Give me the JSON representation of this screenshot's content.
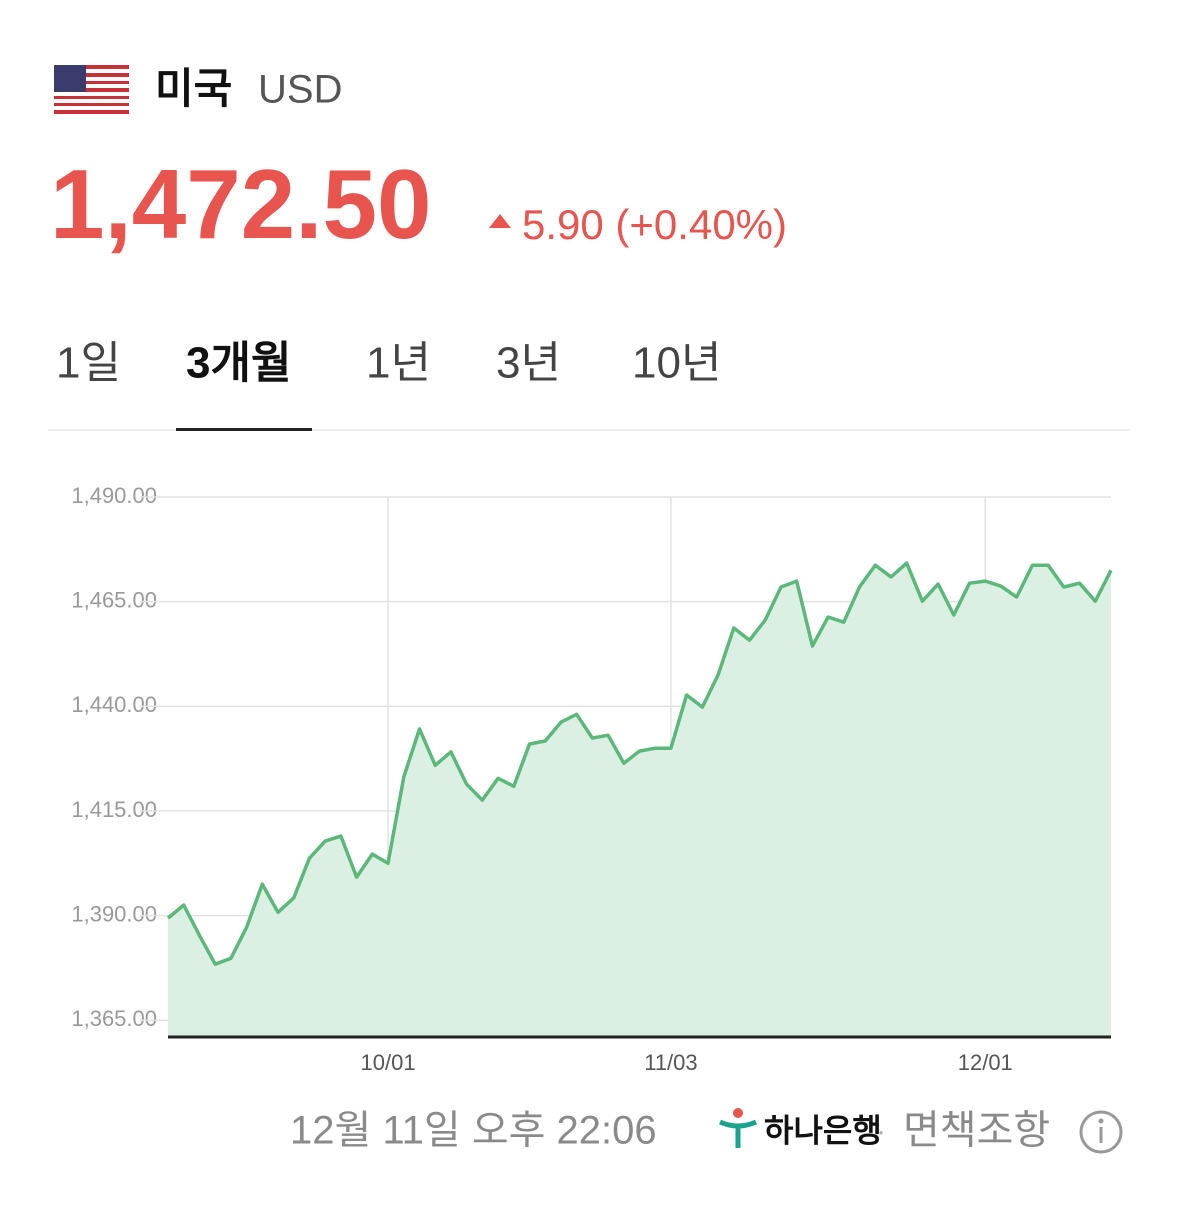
{
  "header": {
    "country": "미국",
    "currency": "USD"
  },
  "quote": {
    "price": "1,472.50",
    "change": "5.90 (+0.40%)"
  },
  "tabs": {
    "items": [
      "1일",
      "3개월",
      "1년",
      "3년",
      "10년"
    ],
    "selected": 1
  },
  "chart_data": {
    "type": "area",
    "categories": [
      null,
      null,
      null,
      null,
      null,
      null,
      null,
      null,
      null,
      null,
      null,
      null,
      null,
      null,
      "10/01",
      null,
      null,
      null,
      null,
      null,
      null,
      null,
      null,
      null,
      null,
      null,
      null,
      null,
      null,
      null,
      null,
      null,
      "11/03",
      null,
      null,
      null,
      null,
      null,
      null,
      null,
      null,
      null,
      null,
      null,
      null,
      null,
      null,
      null,
      null,
      null,
      null,
      null,
      "12/01",
      null,
      null,
      null,
      null,
      null,
      null,
      null,
      null
    ],
    "values": [
      1389.4,
      1392.5,
      1385.3,
      1378.4,
      1379.8,
      1387.2,
      1397.5,
      1390.8,
      1394.2,
      1403.7,
      1407.8,
      1409.0,
      1399.2,
      1404.7,
      1402.5,
      1423.1,
      1434.6,
      1425.9,
      1429.1,
      1421.4,
      1417.6,
      1422.8,
      1420.9,
      1431.0,
      1431.7,
      1436.2,
      1438.1,
      1432.4,
      1433.1,
      1426.4,
      1429.3,
      1430.0,
      1430.0,
      1442.7,
      1439.8,
      1447.5,
      1458.7,
      1455.8,
      1460.6,
      1468.5,
      1469.9,
      1454.4,
      1461.3,
      1460.1,
      1468.5,
      1473.7,
      1470.9,
      1474.2,
      1465.1,
      1469.2,
      1461.8,
      1469.4,
      1469.9,
      1468.7,
      1466.1,
      1473.7,
      1473.7,
      1468.5,
      1469.4,
      1465.1,
      1472.5
    ],
    "color": "#5cb87a",
    "fill": "#dbf0e3",
    "ylim": [
      1361,
      1490
    ],
    "yticks": [
      {
        "value": 1365,
        "label": "1,365.00"
      },
      {
        "value": 1390,
        "label": "1,390.00"
      },
      {
        "value": 1415,
        "label": "1,415.00"
      },
      {
        "value": 1440,
        "label": "1,440.00"
      },
      {
        "value": 1465,
        "label": "1,465.00"
      },
      {
        "value": 1490,
        "label": "1,490.00"
      }
    ],
    "grid": true
  },
  "footer": {
    "timestamp": "12월 11일 오후 22:06",
    "bank": "하나은행",
    "separator": "·",
    "disclaimer": "면책조항"
  }
}
